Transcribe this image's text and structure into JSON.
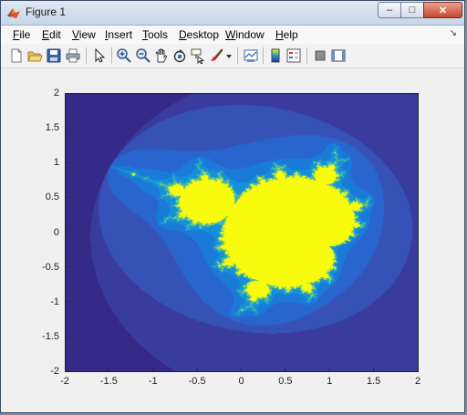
{
  "window": {
    "title": "Figure 1",
    "minimize_glyph": "–",
    "maximize_glyph": "□",
    "close_glyph": "✕"
  },
  "menubar": {
    "items": [
      {
        "label": "File",
        "hotkey": "F",
        "rest": "ile"
      },
      {
        "label": "Edit",
        "hotkey": "E",
        "rest": "dit"
      },
      {
        "label": "View",
        "hotkey": "V",
        "rest": "iew"
      },
      {
        "label": "Insert",
        "hotkey": "I",
        "rest": "nsert"
      },
      {
        "label": "Tools",
        "hotkey": "T",
        "rest": "ools"
      },
      {
        "label": "Desktop",
        "hotkey": "D",
        "rest": "esktop"
      },
      {
        "label": "Window",
        "hotkey": "W",
        "rest": "indow"
      },
      {
        "label": "Help",
        "hotkey": "H",
        "rest": "elp"
      }
    ],
    "overflow_glyph": "↘"
  },
  "toolbar": {
    "icons": [
      "new-figure-icon",
      "open-file-icon",
      "save-icon",
      "print-icon",
      "pointer-icon",
      "zoom-in-icon",
      "zoom-out-icon",
      "pan-icon",
      "rotate-icon",
      "data-cursor-icon",
      "brush-icon",
      "brush-dropdown-icon",
      "link-plot-icon",
      "colorbar-icon",
      "legend-icon",
      "hide-plot-tools-icon",
      "show-plot-tools-icon"
    ]
  },
  "colors": {
    "outside": "#352a87",
    "level1": "#3a3c9d",
    "level2": "#3652b6",
    "level3": "#2865cc",
    "level4": "#1a7ad8",
    "level5": "#1690d7",
    "edge_cyan": "#38b6b6",
    "edge_green": "#6ec46a",
    "inside": "#f9fb0e"
  },
  "chart_data": {
    "type": "heatmap",
    "title": "",
    "xlabel": "",
    "ylabel": "",
    "xlim": [
      -2,
      2
    ],
    "ylim": [
      -2,
      2
    ],
    "xticks": [
      "-2",
      "-1.5",
      "-1",
      "-0.5",
      "0",
      "0.5",
      "1",
      "1.5",
      "2"
    ],
    "yticks": [
      "2",
      "1.5",
      "1",
      "0.5",
      "0",
      "-0.5",
      "-1",
      "-1.5",
      "-2"
    ],
    "grid": false,
    "colormap": "parula",
    "description": "escape-time fractal (Mandelbrot-like set), centered near x=-0.2, y=0.3"
  }
}
